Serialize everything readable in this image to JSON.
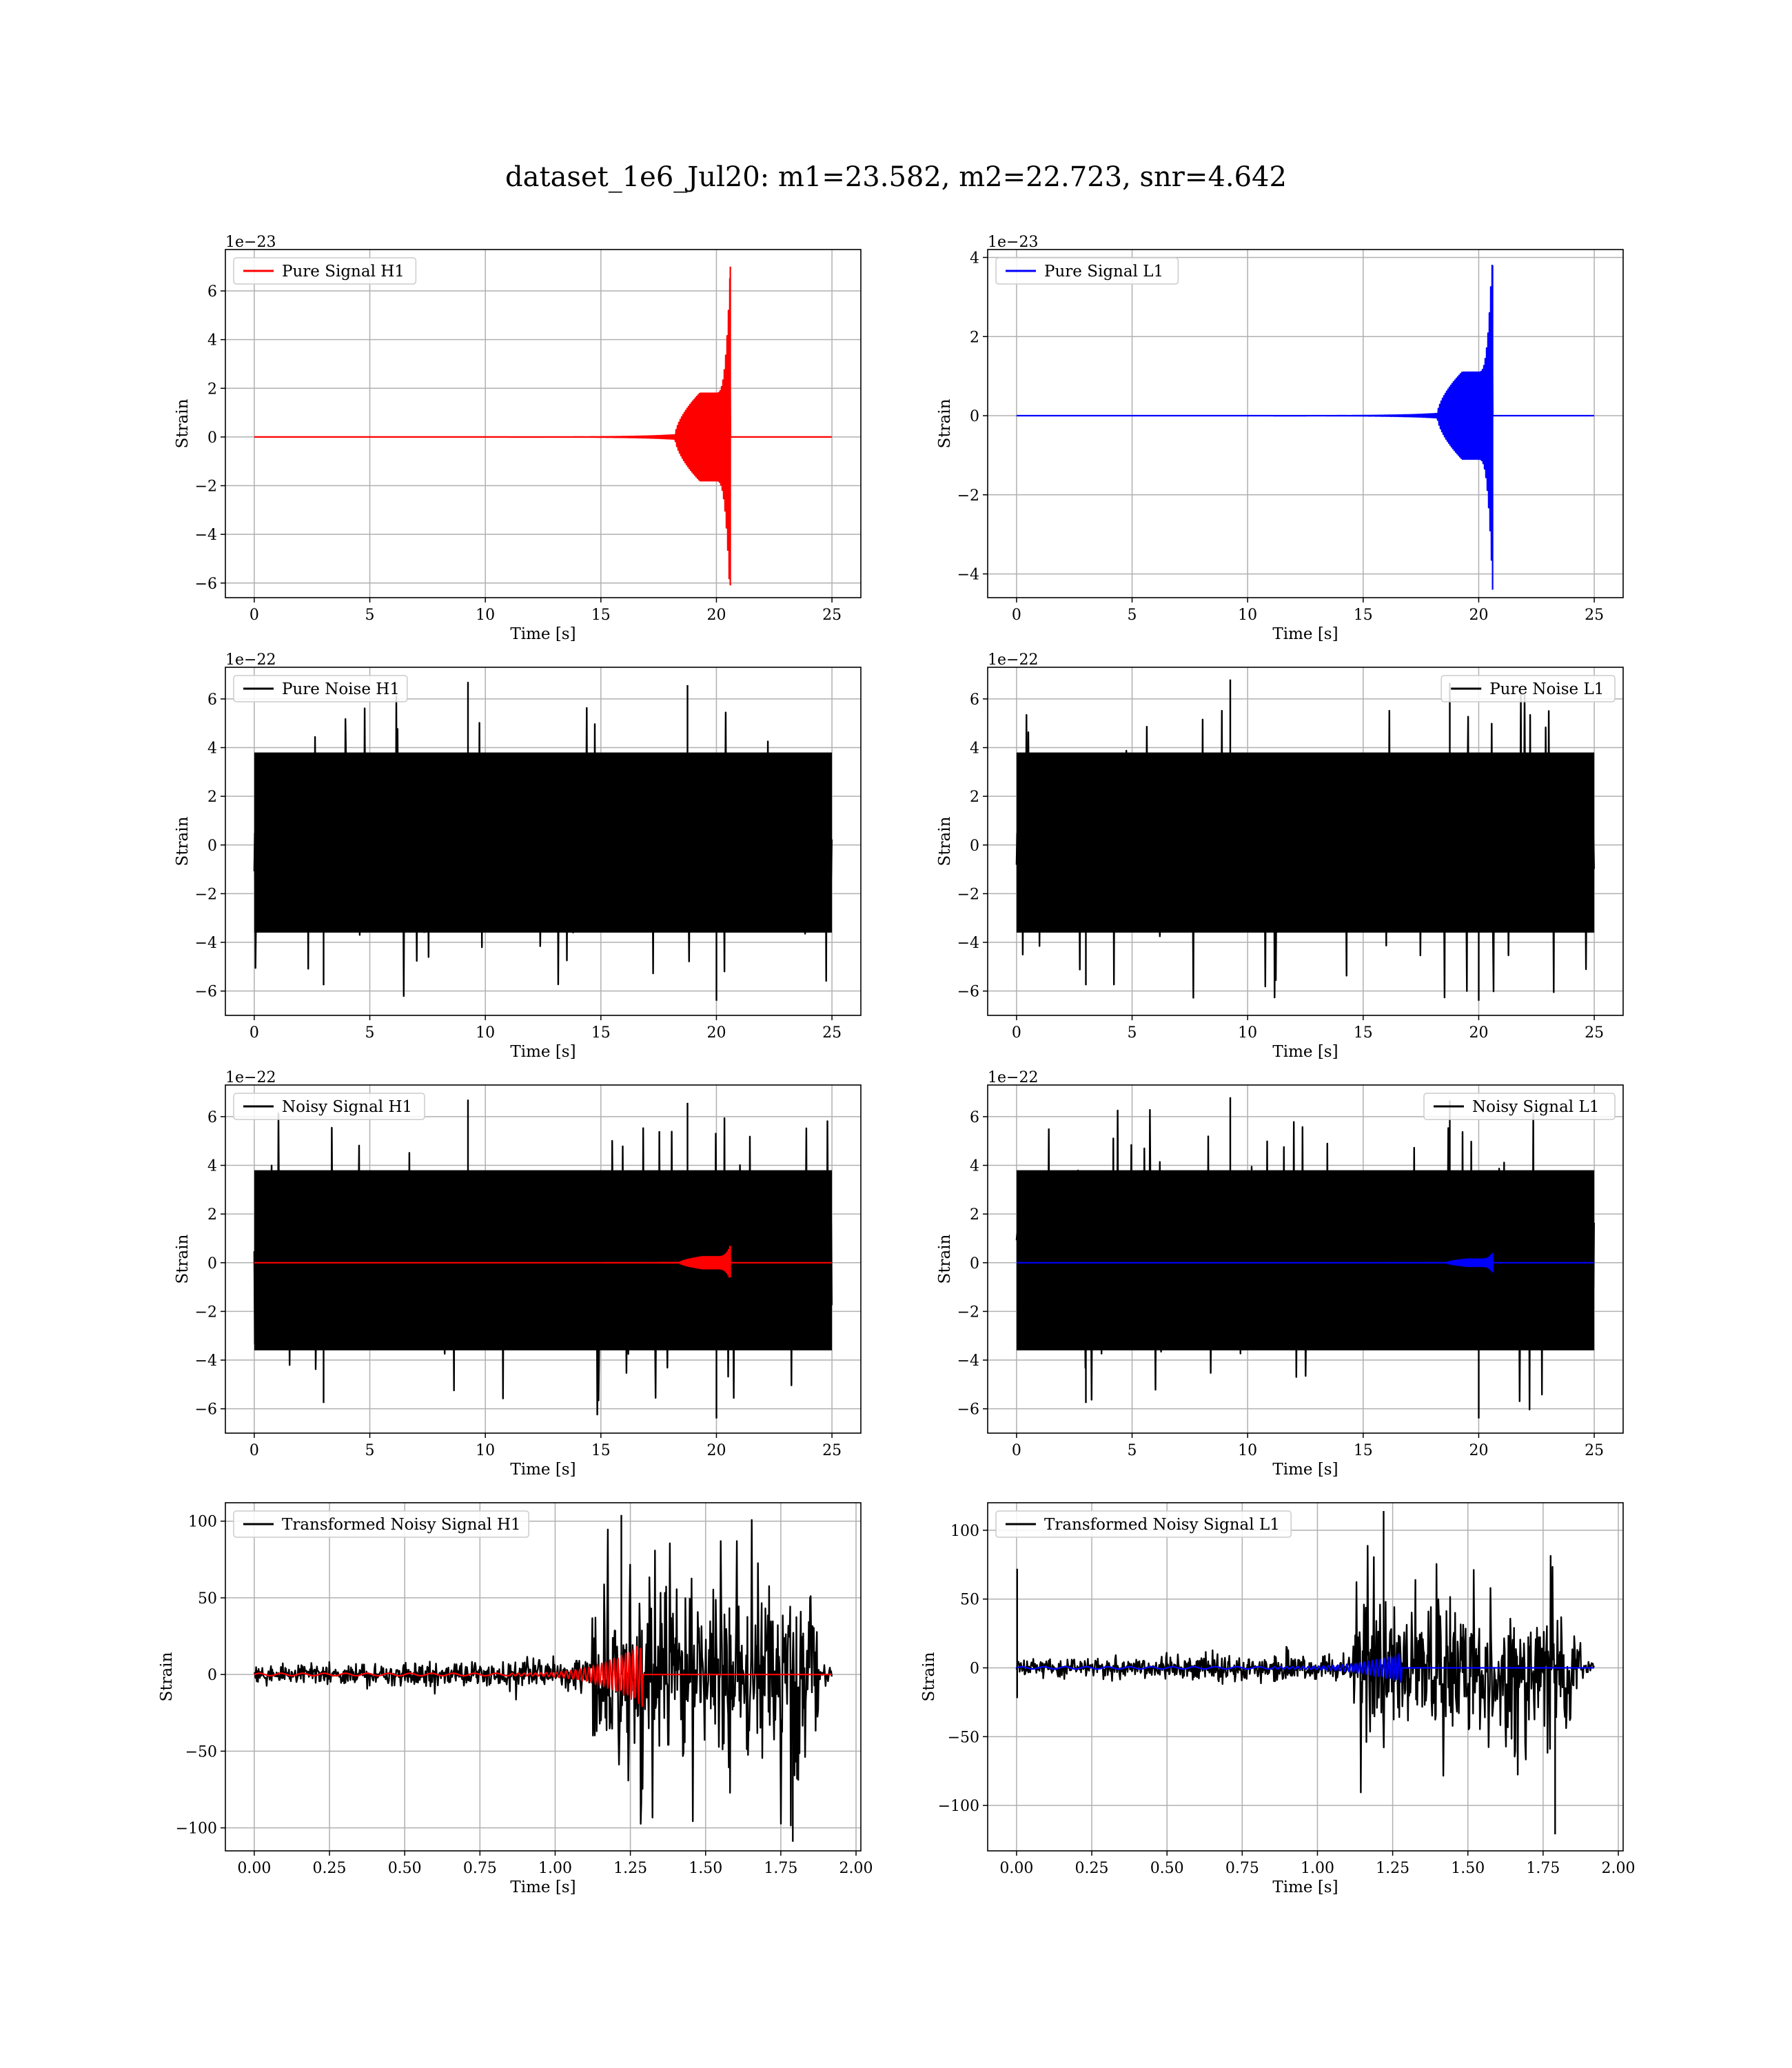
{
  "figure": {
    "title": "dataset_1e6_Jul20: m1=23.582, m2=22.723, snr=4.642"
  },
  "colors": {
    "h1_signal": "#ff0000",
    "l1_signal": "#0000ff",
    "noise": "#000000"
  },
  "chart_data": [
    {
      "id": "pure-signal-h1",
      "type": "line",
      "xlabel": "Time [s]",
      "ylabel": "Strain",
      "offset_text": "1e−23",
      "xlim": [
        -1.25,
        26.25
      ],
      "ylim": [
        -6.6,
        7.7
      ],
      "xticks": [
        0,
        5,
        10,
        15,
        20,
        25
      ],
      "xtick_labels": [
        "0",
        "5",
        "10",
        "15",
        "20",
        "25"
      ],
      "yticks": [
        -6,
        -4,
        -2,
        0,
        2,
        4,
        6
      ],
      "ytick_labels": [
        "−6",
        "−4",
        "−2",
        "0",
        "2",
        "4",
        "6"
      ],
      "legend": "upper left",
      "grid": true,
      "series": [
        {
          "name": "Pure Signal H1",
          "color": "#ff0000",
          "kind": "chirp",
          "t_start": 0,
          "t_end": 25,
          "t_merger": 20.6,
          "onset": 18.2,
          "plateau_amp": 1.8,
          "peak_max": 7.0,
          "peak_min": -6.1
        }
      ]
    },
    {
      "id": "pure-signal-l1",
      "type": "line",
      "xlabel": "Time [s]",
      "ylabel": "Strain",
      "offset_text": "1e−23",
      "xlim": [
        -1.25,
        26.25
      ],
      "ylim": [
        -4.6,
        4.2
      ],
      "xticks": [
        0,
        5,
        10,
        15,
        20,
        25
      ],
      "xtick_labels": [
        "0",
        "5",
        "10",
        "15",
        "20",
        "25"
      ],
      "yticks": [
        -4,
        -2,
        0,
        2,
        4
      ],
      "ytick_labels": [
        "−4",
        "−2",
        "0",
        "2",
        "4"
      ],
      "legend": "upper left",
      "grid": true,
      "series": [
        {
          "name": "Pure Signal L1",
          "color": "#0000ff",
          "kind": "chirp",
          "t_start": 0,
          "t_end": 25,
          "t_merger": 20.6,
          "onset": 18.2,
          "plateau_amp": 1.1,
          "peak_max": 3.8,
          "peak_min": -4.4
        }
      ]
    },
    {
      "id": "pure-noise-h1",
      "type": "line",
      "xlabel": "Time [s]",
      "ylabel": "Strain",
      "offset_text": "1e−22",
      "xlim": [
        -1.25,
        26.25
      ],
      "ylim": [
        -7.0,
        7.3
      ],
      "xticks": [
        0,
        5,
        10,
        15,
        20,
        25
      ],
      "xtick_labels": [
        "0",
        "5",
        "10",
        "15",
        "20",
        "25"
      ],
      "yticks": [
        -6,
        -4,
        -2,
        0,
        2,
        4,
        6
      ],
      "ytick_labels": [
        "−6",
        "−4",
        "−2",
        "0",
        "2",
        "4",
        "6"
      ],
      "legend": "upper left",
      "grid": true,
      "series": [
        {
          "name": "Pure Noise H1",
          "color": "#000000",
          "kind": "noise",
          "t_start": 0,
          "t_end": 25,
          "max": 6.7,
          "min": -6.4,
          "band_top": 3.8,
          "band_bottom": -3.6
        }
      ]
    },
    {
      "id": "pure-noise-l1",
      "type": "line",
      "xlabel": "Time [s]",
      "ylabel": "Strain",
      "offset_text": "1e−22",
      "xlim": [
        -1.25,
        26.25
      ],
      "ylim": [
        -7.0,
        7.3
      ],
      "xticks": [
        0,
        5,
        10,
        15,
        20,
        25
      ],
      "xtick_labels": [
        "0",
        "5",
        "10",
        "15",
        "20",
        "25"
      ],
      "yticks": [
        -6,
        -4,
        -2,
        0,
        2,
        4,
        6
      ],
      "ytick_labels": [
        "−6",
        "−4",
        "−2",
        "0",
        "2",
        "4",
        "6"
      ],
      "legend": "upper right",
      "grid": true,
      "series": [
        {
          "name": "Pure Noise L1",
          "color": "#000000",
          "kind": "noise",
          "t_start": 0,
          "t_end": 25,
          "max": 6.8,
          "min": -6.4,
          "band_top": 3.8,
          "band_bottom": -3.6
        }
      ]
    },
    {
      "id": "noisy-signal-h1",
      "type": "line",
      "xlabel": "Time [s]",
      "ylabel": "Strain",
      "offset_text": "1e−22",
      "xlim": [
        -1.25,
        26.25
      ],
      "ylim": [
        -7.0,
        7.3
      ],
      "xticks": [
        0,
        5,
        10,
        15,
        20,
        25
      ],
      "xtick_labels": [
        "0",
        "5",
        "10",
        "15",
        "20",
        "25"
      ],
      "yticks": [
        -6,
        -4,
        -2,
        0,
        2,
        4,
        6
      ],
      "ytick_labels": [
        "−6",
        "−4",
        "−2",
        "0",
        "2",
        "4",
        "6"
      ],
      "legend": "upper left",
      "grid": true,
      "series": [
        {
          "name": "Noisy Signal H1",
          "color": "#000000",
          "kind": "noise",
          "t_start": 0,
          "t_end": 25,
          "max": 6.7,
          "min": -6.4,
          "band_top": 3.8,
          "band_bottom": -3.6
        },
        {
          "color": "#ff0000",
          "kind": "chirp",
          "t_start": 0,
          "t_end": 25,
          "t_merger": 20.6,
          "onset": 18.4,
          "plateau_amp": 0.25,
          "peak_max": 0.7,
          "peak_min": -0.6
        }
      ]
    },
    {
      "id": "noisy-signal-l1",
      "type": "line",
      "xlabel": "Time [s]",
      "ylabel": "Strain",
      "offset_text": "1e−22",
      "xlim": [
        -1.25,
        26.25
      ],
      "ylim": [
        -7.0,
        7.3
      ],
      "xticks": [
        0,
        5,
        10,
        15,
        20,
        25
      ],
      "xtick_labels": [
        "0",
        "5",
        "10",
        "15",
        "20",
        "25"
      ],
      "yticks": [
        -6,
        -4,
        -2,
        0,
        2,
        4,
        6
      ],
      "ytick_labels": [
        "−6",
        "−4",
        "−2",
        "0",
        "2",
        "4",
        "6"
      ],
      "legend": "upper right",
      "grid": true,
      "series": [
        {
          "name": "Noisy Signal L1",
          "color": "#000000",
          "kind": "noise",
          "t_start": 0,
          "t_end": 25,
          "max": 6.8,
          "min": -6.4,
          "band_top": 3.8,
          "band_bottom": -3.6
        },
        {
          "color": "#0000ff",
          "kind": "chirp",
          "t_start": 0,
          "t_end": 25,
          "t_merger": 20.6,
          "onset": 18.6,
          "plateau_amp": 0.15,
          "peak_max": 0.4,
          "peak_min": -0.4
        }
      ]
    },
    {
      "id": "transformed-noisy-signal-h1",
      "type": "line",
      "xlabel": "Time [s]",
      "ylabel": "Strain",
      "offset_text": "",
      "xlim": [
        -0.096,
        2.016
      ],
      "ylim": [
        -115,
        112
      ],
      "xticks": [
        0,
        0.25,
        0.5,
        0.75,
        1.0,
        1.25,
        1.5,
        1.75,
        2.0
      ],
      "xtick_labels": [
        "0.00",
        "0.25",
        "0.50",
        "0.75",
        "1.00",
        "1.25",
        "1.50",
        "1.75",
        "2.00"
      ],
      "yticks": [
        -100,
        -50,
        0,
        50,
        100
      ],
      "ytick_labels": [
        "−100",
        "−50",
        "0",
        "50",
        "100"
      ],
      "legend": "upper left",
      "grid": true,
      "series": [
        {
          "name": "Transformed Noisy Signal H1",
          "color": "#000000",
          "kind": "transformed",
          "t_start": 0,
          "t_end": 1.92,
          "burst_start": 1.12,
          "burst_end": 1.875,
          "pre_amp": 8,
          "burst_amp": 60,
          "max": 104,
          "min": -109,
          "tail_amp": 6
        },
        {
          "color": "#ff0000",
          "kind": "tchirp",
          "t_start": 0,
          "t_end": 1.92,
          "t_merger": 1.29,
          "onset": 0.85,
          "peak": 20
        }
      ]
    },
    {
      "id": "transformed-noisy-signal-l1",
      "type": "line",
      "xlabel": "Time [s]",
      "ylabel": "Strain",
      "offset_text": "",
      "xlim": [
        -0.096,
        2.016
      ],
      "ylim": [
        -133,
        120
      ],
      "xticks": [
        0,
        0.25,
        0.5,
        0.75,
        1.0,
        1.25,
        1.5,
        1.75,
        2.0
      ],
      "xtick_labels": [
        "0.00",
        "0.25",
        "0.50",
        "0.75",
        "1.00",
        "1.25",
        "1.50",
        "1.75",
        "2.00"
      ],
      "yticks": [
        -100,
        -50,
        0,
        50,
        100
      ],
      "ytick_labels": [
        "−100",
        "−50",
        "0",
        "50",
        "100"
      ],
      "legend": "upper left",
      "grid": true,
      "series": [
        {
          "name": "Transformed Noisy Signal L1",
          "color": "#000000",
          "kind": "transformed",
          "t_start": 0,
          "t_end": 1.92,
          "burst_start": 1.12,
          "burst_end": 1.875,
          "pre_amp": 8,
          "burst_amp": 55,
          "max": 114,
          "min": -121,
          "tail_amp": 6,
          "spike_start": 72
        },
        {
          "color": "#0000ff",
          "kind": "tchirp",
          "t_start": 0,
          "t_end": 1.92,
          "t_merger": 1.28,
          "onset": 0.85,
          "peak": 10
        }
      ]
    }
  ]
}
